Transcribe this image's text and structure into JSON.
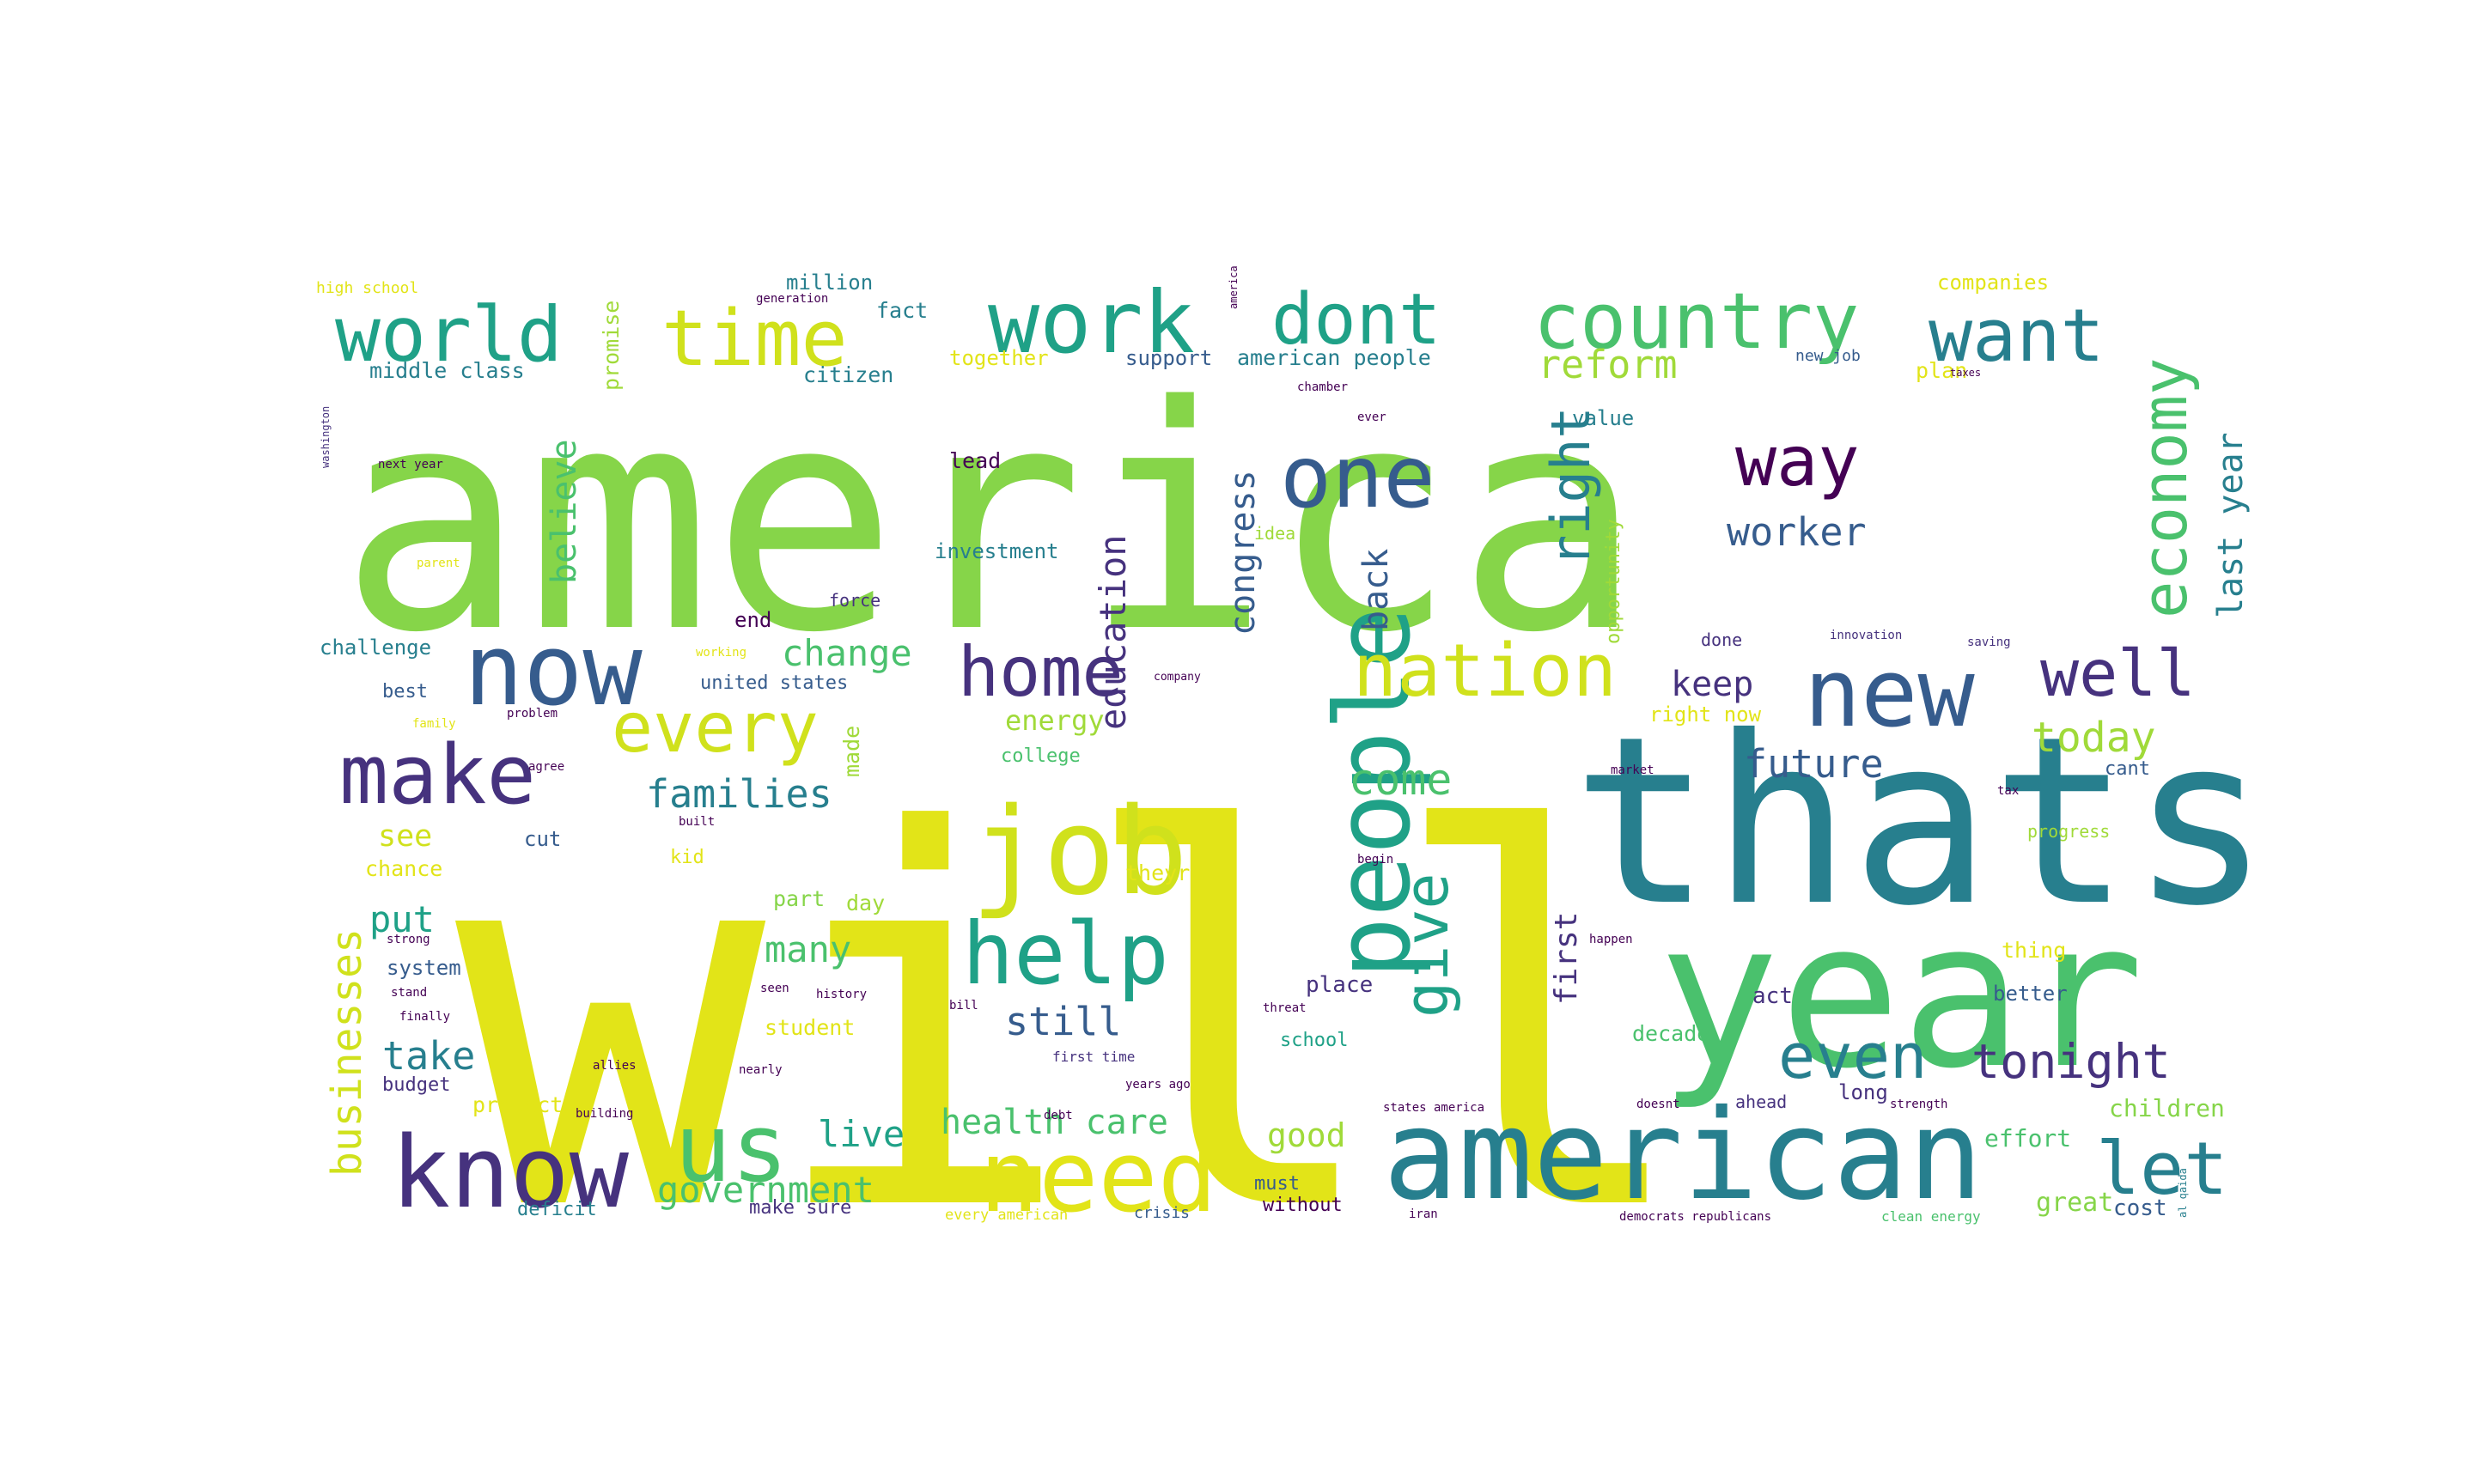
{
  "colors": {
    "background": "#ffffff",
    "palette": [
      "#440154",
      "#46327e",
      "#365c8d",
      "#277f8e",
      "#1fa187",
      "#4ac16d",
      "#86d549",
      "#a0da39",
      "#d0e11c",
      "#e2e418"
    ]
  },
  "words": [
    {
      "text": "america",
      "color": "#86d549"
    },
    {
      "text": "will",
      "color": "#e2e418"
    },
    {
      "text": "thats",
      "color": "#277f8e"
    },
    {
      "text": "year",
      "color": "#4ac16d"
    },
    {
      "text": "american",
      "color": "#277f8e"
    },
    {
      "text": "people",
      "color": "#1fa187"
    },
    {
      "text": "job",
      "color": "#d0e11c"
    },
    {
      "text": "know",
      "color": "#46327e"
    },
    {
      "text": "us",
      "color": "#4ac16d"
    },
    {
      "text": "need",
      "color": "#e2e418"
    },
    {
      "text": "now",
      "color": "#365c8d"
    },
    {
      "text": "new",
      "color": "#365c8d"
    },
    {
      "text": "help",
      "color": "#1fa187"
    },
    {
      "text": "world",
      "color": "#1fa187"
    },
    {
      "text": "work",
      "color": "#1fa187"
    },
    {
      "text": "country",
      "color": "#4ac16d"
    },
    {
      "text": "dont",
      "color": "#1fa187"
    },
    {
      "text": "want",
      "color": "#277f8e"
    },
    {
      "text": "time",
      "color": "#d0e11c"
    },
    {
      "text": "one",
      "color": "#365c8d"
    },
    {
      "text": "make",
      "color": "#46327e"
    },
    {
      "text": "home",
      "color": "#46327e"
    },
    {
      "text": "nation",
      "color": "#d0e11c"
    },
    {
      "text": "well",
      "color": "#46327e"
    },
    {
      "text": "economy",
      "color": "#4ac16d"
    },
    {
      "text": "way",
      "color": "#440154"
    },
    {
      "text": "every",
      "color": "#d0e11c"
    },
    {
      "text": "even",
      "color": "#277f8e"
    },
    {
      "text": "tonight",
      "color": "#46327e"
    },
    {
      "text": "let",
      "color": "#277f8e"
    },
    {
      "text": "give",
      "color": "#1fa187"
    },
    {
      "text": "right",
      "color": "#277f8e"
    },
    {
      "text": "education",
      "color": "#46327e"
    },
    {
      "text": "businesses",
      "color": "#d0e11c"
    },
    {
      "text": "government",
      "color": "#4ac16d"
    },
    {
      "text": "health care",
      "color": "#4ac16d"
    },
    {
      "text": "still",
      "color": "#365c8d"
    },
    {
      "text": "today",
      "color": "#a0da39"
    },
    {
      "text": "worker",
      "color": "#365c8d"
    },
    {
      "text": "reform",
      "color": "#a0da39"
    },
    {
      "text": "last year",
      "color": "#277f8e"
    },
    {
      "text": "families",
      "color": "#277f8e"
    },
    {
      "text": "change",
      "color": "#4ac16d"
    },
    {
      "text": "future",
      "color": "#365c8d"
    },
    {
      "text": "come",
      "color": "#4ac16d"
    },
    {
      "text": "believe",
      "color": "#4ac16d"
    },
    {
      "text": "congress",
      "color": "#365c8d"
    },
    {
      "text": "back",
      "color": "#365c8d"
    },
    {
      "text": "keep",
      "color": "#46327e"
    },
    {
      "text": "take",
      "color": "#277f8e"
    },
    {
      "text": "put",
      "color": "#1fa187"
    },
    {
      "text": "live",
      "color": "#1fa187"
    },
    {
      "text": "many",
      "color": "#4ac16d"
    },
    {
      "text": "good",
      "color": "#a0da39"
    },
    {
      "text": "first",
      "color": "#46327e"
    },
    {
      "text": "energy",
      "color": "#a0da39"
    },
    {
      "text": "see",
      "color": "#d0e11c"
    },
    {
      "text": "part",
      "color": "#86d549"
    },
    {
      "text": "student",
      "color": "#e2e418"
    },
    {
      "text": "children",
      "color": "#86d549"
    },
    {
      "text": "effort",
      "color": "#4ac16d"
    },
    {
      "text": "decade",
      "color": "#4ac16d"
    },
    {
      "text": "school",
      "color": "#1fa187"
    },
    {
      "text": "place",
      "color": "#46327e"
    },
    {
      "text": "opportunity",
      "color": "#a0da39"
    },
    {
      "text": "investment",
      "color": "#277f8e"
    },
    {
      "text": "american people",
      "color": "#277f8e"
    },
    {
      "text": "support",
      "color": "#365c8d"
    },
    {
      "text": "together",
      "color": "#e2e418"
    },
    {
      "text": "citizen",
      "color": "#277f8e"
    },
    {
      "text": "middle class",
      "color": "#277f8e"
    },
    {
      "text": "promise",
      "color": "#a0da39"
    },
    {
      "text": "million",
      "color": "#277f8e"
    },
    {
      "text": "fact",
      "color": "#277f8e"
    },
    {
      "text": "high school",
      "color": "#e2e418"
    },
    {
      "text": "companies",
      "color": "#e2e418"
    },
    {
      "text": "new job",
      "color": "#365c8d"
    },
    {
      "text": "plan",
      "color": "#e2e418"
    },
    {
      "text": "value",
      "color": "#277f8e"
    },
    {
      "text": "lead",
      "color": "#440154"
    },
    {
      "text": "challenge",
      "color": "#277f8e"
    },
    {
      "text": "united states",
      "color": "#365c8d"
    },
    {
      "text": "college",
      "color": "#4ac16d"
    },
    {
      "text": "made",
      "color": "#a0da39"
    },
    {
      "text": "best",
      "color": "#365c8d"
    },
    {
      "text": "chance",
      "color": "#e2e418"
    },
    {
      "text": "cut",
      "color": "#365c8d"
    },
    {
      "text": "system",
      "color": "#365c8d"
    },
    {
      "text": "budget",
      "color": "#46327e"
    },
    {
      "text": "protect",
      "color": "#e2e418"
    },
    {
      "text": "deficit",
      "color": "#277f8e"
    },
    {
      "text": "make sure",
      "color": "#46327e"
    },
    {
      "text": "every american",
      "color": "#e2e418"
    },
    {
      "text": "crisis",
      "color": "#365c8d"
    },
    {
      "text": "without",
      "color": "#440154"
    },
    {
      "text": "must",
      "color": "#365c8d"
    },
    {
      "text": "great",
      "color": "#86d549"
    },
    {
      "text": "cost",
      "color": "#365c8d"
    },
    {
      "text": "act",
      "color": "#46327e"
    },
    {
      "text": "better",
      "color": "#365c8d"
    },
    {
      "text": "thing",
      "color": "#e2e418"
    },
    {
      "text": "progress",
      "color": "#a0da39"
    },
    {
      "text": "cant",
      "color": "#365c8d"
    },
    {
      "text": "long",
      "color": "#46327e"
    },
    {
      "text": "ahead",
      "color": "#46327e"
    },
    {
      "text": "right now",
      "color": "#e2e418"
    },
    {
      "text": "done",
      "color": "#46327e"
    },
    {
      "text": "theyre",
      "color": "#e2e418"
    },
    {
      "text": "day",
      "color": "#a0da39"
    },
    {
      "text": "end",
      "color": "#440154"
    },
    {
      "text": "force",
      "color": "#46327e"
    },
    {
      "text": "kid",
      "color": "#e2e418"
    },
    {
      "text": "idea",
      "color": "#a0da39"
    },
    {
      "text": "democrats republicans",
      "color": "#440154"
    },
    {
      "text": "clean energy",
      "color": "#4ac16d"
    },
    {
      "text": "states america",
      "color": "#440154"
    },
    {
      "text": "first time",
      "color": "#46327e"
    },
    {
      "text": "saving",
      "color": "#46327e"
    },
    {
      "text": "innovation",
      "color": "#46327e"
    },
    {
      "text": "washington",
      "color": "#46327e"
    },
    {
      "text": "next year",
      "color": "#440154"
    },
    {
      "text": "bill",
      "color": "#440154"
    },
    {
      "text": "history",
      "color": "#440154"
    },
    {
      "text": "building",
      "color": "#440154"
    },
    {
      "text": "allies",
      "color": "#440154"
    },
    {
      "text": "strength",
      "color": "#440154"
    },
    {
      "text": "threat",
      "color": "#440154"
    },
    {
      "text": "al qaida",
      "color": "#277f8e"
    },
    {
      "text": "years ago",
      "color": "#440154"
    },
    {
      "text": "happen",
      "color": "#440154"
    },
    {
      "text": "generation",
      "color": "#440154"
    },
    {
      "text": "chamber",
      "color": "#440154"
    },
    {
      "text": "america",
      "color": "#440154"
    },
    {
      "text": "taxes",
      "color": "#440154"
    },
    {
      "text": "stand",
      "color": "#440154"
    },
    {
      "text": "iran",
      "color": "#440154"
    },
    {
      "text": "ever",
      "color": "#440154"
    },
    {
      "text": "strong",
      "color": "#440154"
    },
    {
      "text": "finally",
      "color": "#440154"
    },
    {
      "text": "problem",
      "color": "#440154"
    },
    {
      "text": "agree",
      "color": "#440154"
    },
    {
      "text": "nearly",
      "color": "#440154"
    },
    {
      "text": "seen",
      "color": "#440154"
    },
    {
      "text": "debt",
      "color": "#440154"
    },
    {
      "text": "begin",
      "color": "#440154"
    },
    {
      "text": "market",
      "color": "#440154"
    },
    {
      "text": "doesnt",
      "color": "#440154"
    },
    {
      "text": "parent",
      "color": "#e2e418"
    },
    {
      "text": "family",
      "color": "#e2e418"
    },
    {
      "text": "working",
      "color": "#e2e418"
    },
    {
      "text": "company",
      "color": "#440154"
    },
    {
      "text": "built",
      "color": "#440154"
    },
    {
      "text": "tax",
      "color": "#440154"
    }
  ]
}
